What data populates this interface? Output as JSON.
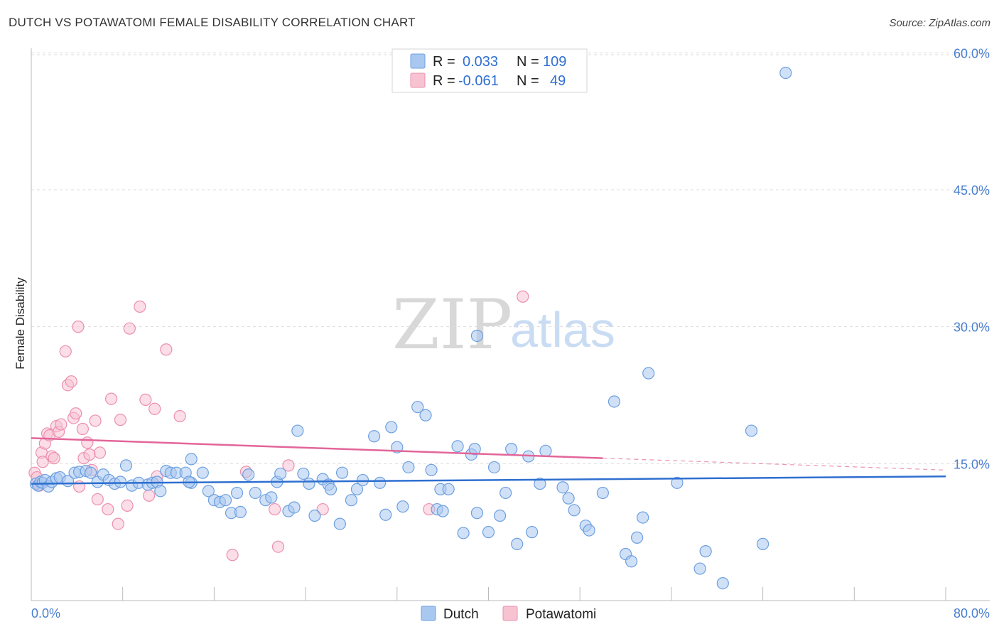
{
  "title": "DUTCH VS POTAWATOMI FEMALE DISABILITY CORRELATION CHART",
  "source": "Source: ZipAtlas.com",
  "watermark": {
    "zip": "ZIP",
    "atlas": "atlas"
  },
  "legend": {
    "rows": [
      {
        "r_label": "R =",
        "r_value": "0.033",
        "n_label": "N =",
        "n_value": "109",
        "color": "#a9c8f0"
      },
      {
        "r_label": "R =",
        "r_value": "-0.061",
        "n_label": "N =",
        "n_value": "49",
        "color": "#f5b8cb"
      }
    ]
  },
  "colors": {
    "dutch_fill": "#a9c8f0",
    "dutch_stroke": "#6d9fe0",
    "dutch_line": "#2e6fd0",
    "potawatomi_fill": "#f7c3d3",
    "potawatomi_stroke": "#ec8fae",
    "potawatomi_line": "#e2669a",
    "axis_label": "#4a7fd0"
  },
  "chart_data": {
    "type": "scatter",
    "title": "DUTCH VS POTAWATOMI FEMALE DISABILITY CORRELATION CHART",
    "xlabel": "",
    "ylabel": "Female Disability",
    "xlim": [
      0,
      80
    ],
    "ylim": [
      0,
      61.5
    ],
    "x_tick_labels": [
      "0.0%",
      "80.0%"
    ],
    "y_tick_values": [
      15,
      30,
      45,
      60
    ],
    "y_tick_labels": [
      "15.0%",
      "30.0%",
      "45.0%",
      "60.0%"
    ],
    "grid": "horizontal dashed",
    "legend_position": "top-center",
    "series": [
      {
        "name": "Dutch",
        "trend": {
          "x": [
            0,
            80
          ],
          "y": [
            12.8,
            13.6
          ]
        },
        "points": [
          [
            0.4,
            12.8
          ],
          [
            0.6,
            12.6
          ],
          [
            0.8,
            13.0
          ],
          [
            1.0,
            12.9
          ],
          [
            1.2,
            13.2
          ],
          [
            1.5,
            12.5
          ],
          [
            1.8,
            13.0
          ],
          [
            2.2,
            13.4
          ],
          [
            2.5,
            13.5
          ],
          [
            3.2,
            13.1
          ],
          [
            3.8,
            14.0
          ],
          [
            4.2,
            14.1
          ],
          [
            4.8,
            14.2
          ],
          [
            5.2,
            14.0
          ],
          [
            5.8,
            13.0
          ],
          [
            6.3,
            13.8
          ],
          [
            6.8,
            13.2
          ],
          [
            7.3,
            12.8
          ],
          [
            7.8,
            13.0
          ],
          [
            8.3,
            14.8
          ],
          [
            8.8,
            12.6
          ],
          [
            9.4,
            12.9
          ],
          [
            10.2,
            12.7
          ],
          [
            10.6,
            12.9
          ],
          [
            11.0,
            13.0
          ],
          [
            11.3,
            12.0
          ],
          [
            11.8,
            14.2
          ],
          [
            12.2,
            14.0
          ],
          [
            12.7,
            14.0
          ],
          [
            13.5,
            14.0
          ],
          [
            14.0,
            12.9
          ],
          [
            13.8,
            13.0
          ],
          [
            14.0,
            15.5
          ],
          [
            15.0,
            14.0
          ],
          [
            15.5,
            12.0
          ],
          [
            16.0,
            11.0
          ],
          [
            16.5,
            10.8
          ],
          [
            17.0,
            11.0
          ],
          [
            17.5,
            9.6
          ],
          [
            18.0,
            11.8
          ],
          [
            18.3,
            9.7
          ],
          [
            19.0,
            13.8
          ],
          [
            19.6,
            11.8
          ],
          [
            20.5,
            11.0
          ],
          [
            21.0,
            11.3
          ],
          [
            21.5,
            13.0
          ],
          [
            21.8,
            13.9
          ],
          [
            22.5,
            9.8
          ],
          [
            23.0,
            10.2
          ],
          [
            23.3,
            18.6
          ],
          [
            23.8,
            13.9
          ],
          [
            24.3,
            12.8
          ],
          [
            24.8,
            9.3
          ],
          [
            25.5,
            13.3
          ],
          [
            26.0,
            12.7
          ],
          [
            26.2,
            12.2
          ],
          [
            27.0,
            8.4
          ],
          [
            27.2,
            14.0
          ],
          [
            28.0,
            11.0
          ],
          [
            28.5,
            12.2
          ],
          [
            29.0,
            13.2
          ],
          [
            30.0,
            18.0
          ],
          [
            30.5,
            12.9
          ],
          [
            31.0,
            9.4
          ],
          [
            31.5,
            19.0
          ],
          [
            32.0,
            16.8
          ],
          [
            32.5,
            10.3
          ],
          [
            33.0,
            14.6
          ],
          [
            33.8,
            21.2
          ],
          [
            34.5,
            20.3
          ],
          [
            35.0,
            14.3
          ],
          [
            35.5,
            10.0
          ],
          [
            35.8,
            12.2
          ],
          [
            36.0,
            9.8
          ],
          [
            36.5,
            12.2
          ],
          [
            37.3,
            16.9
          ],
          [
            37.8,
            7.4
          ],
          [
            38.5,
            16.0
          ],
          [
            38.8,
            16.6
          ],
          [
            39.0,
            9.6
          ],
          [
            40.0,
            7.5
          ],
          [
            40.5,
            14.6
          ],
          [
            41.0,
            9.3
          ],
          [
            41.5,
            11.8
          ],
          [
            42.0,
            16.6
          ],
          [
            42.5,
            6.2
          ],
          [
            43.5,
            15.8
          ],
          [
            43.8,
            7.5
          ],
          [
            44.5,
            12.8
          ],
          [
            45.0,
            16.4
          ],
          [
            46.5,
            12.4
          ],
          [
            47.0,
            11.2
          ],
          [
            47.5,
            9.9
          ],
          [
            48.5,
            8.2
          ],
          [
            48.8,
            7.7
          ],
          [
            50.0,
            11.8
          ],
          [
            51.0,
            21.8
          ],
          [
            52.0,
            5.1
          ],
          [
            52.5,
            4.3
          ],
          [
            53.0,
            6.9
          ],
          [
            53.5,
            9.1
          ],
          [
            54.0,
            24.9
          ],
          [
            56.5,
            12.9
          ],
          [
            58.5,
            3.5
          ],
          [
            59.0,
            5.4
          ],
          [
            60.5,
            1.9
          ],
          [
            63.0,
            18.6
          ],
          [
            64.0,
            6.2
          ],
          [
            66.0,
            57.8
          ],
          [
            39.0,
            29.0
          ]
        ]
      },
      {
        "name": "Potawatomi",
        "trend": {
          "x": [
            0,
            50
          ],
          "y": [
            17.8,
            15.6
          ]
        },
        "trend_dashed": {
          "x": [
            50,
            80
          ],
          "y": [
            15.6,
            14.3
          ]
        },
        "points": [
          [
            0.3,
            14.0
          ],
          [
            0.5,
            13.5
          ],
          [
            0.7,
            12.6
          ],
          [
            0.9,
            16.2
          ],
          [
            1.0,
            15.2
          ],
          [
            1.2,
            17.2
          ],
          [
            1.4,
            18.3
          ],
          [
            1.6,
            18.1
          ],
          [
            1.8,
            15.8
          ],
          [
            2.0,
            15.6
          ],
          [
            2.2,
            19.1
          ],
          [
            2.4,
            18.5
          ],
          [
            2.6,
            19.3
          ],
          [
            3.0,
            27.3
          ],
          [
            3.2,
            23.6
          ],
          [
            3.5,
            24.0
          ],
          [
            3.7,
            20.0
          ],
          [
            3.9,
            20.5
          ],
          [
            4.1,
            30.0
          ],
          [
            4.2,
            12.5
          ],
          [
            4.5,
            18.8
          ],
          [
            4.6,
            15.6
          ],
          [
            4.9,
            17.3
          ],
          [
            5.1,
            16.0
          ],
          [
            5.3,
            14.3
          ],
          [
            5.6,
            19.7
          ],
          [
            5.8,
            11.1
          ],
          [
            6.0,
            16.2
          ],
          [
            6.7,
            10.0
          ],
          [
            7.0,
            22.1
          ],
          [
            7.6,
            8.4
          ],
          [
            7.8,
            19.8
          ],
          [
            8.4,
            10.4
          ],
          [
            8.6,
            29.8
          ],
          [
            9.5,
            32.2
          ],
          [
            10.0,
            22.0
          ],
          [
            10.3,
            11.5
          ],
          [
            10.8,
            21.0
          ],
          [
            11.0,
            13.6
          ],
          [
            11.8,
            27.5
          ],
          [
            13.0,
            20.2
          ],
          [
            17.6,
            5.0
          ],
          [
            18.8,
            14.1
          ],
          [
            21.3,
            10.0
          ],
          [
            21.6,
            5.9
          ],
          [
            22.5,
            14.8
          ],
          [
            25.5,
            10.0
          ],
          [
            34.8,
            10.0
          ],
          [
            43.0,
            33.3
          ]
        ]
      }
    ]
  },
  "bottom_legend": [
    {
      "label": "Dutch",
      "color": "#a9c8f0"
    },
    {
      "label": "Potawatomi",
      "color": "#f7c3d3"
    }
  ]
}
